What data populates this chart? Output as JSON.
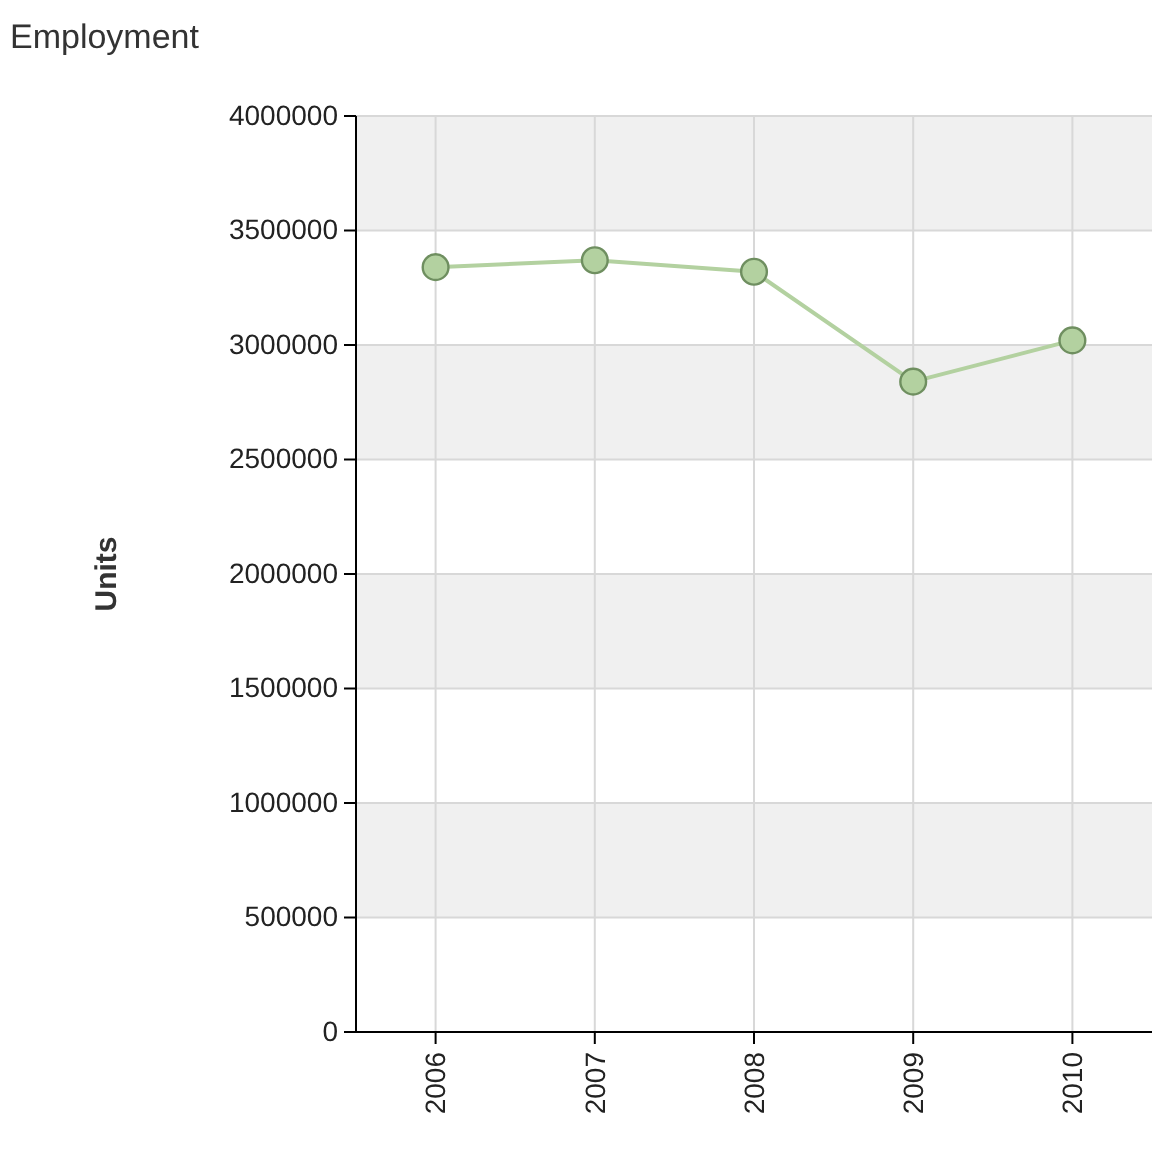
{
  "chart_data": {
    "type": "line",
    "title": "Employment",
    "ylabel": "Units",
    "categories": [
      "2006",
      "2007",
      "2008",
      "2009",
      "2010"
    ],
    "series": [
      {
        "color": "#b3d1a0",
        "values": [
          3340000,
          3370000,
          3320000,
          2840000,
          3020000
        ]
      }
    ],
    "ylim": [
      0,
      4000000
    ],
    "yticks": [
      0,
      500000,
      1000000,
      1500000,
      2000000,
      2500000,
      3000000,
      3500000,
      4000000
    ],
    "grid": true,
    "marker": "circle",
    "line_style": "solid"
  }
}
